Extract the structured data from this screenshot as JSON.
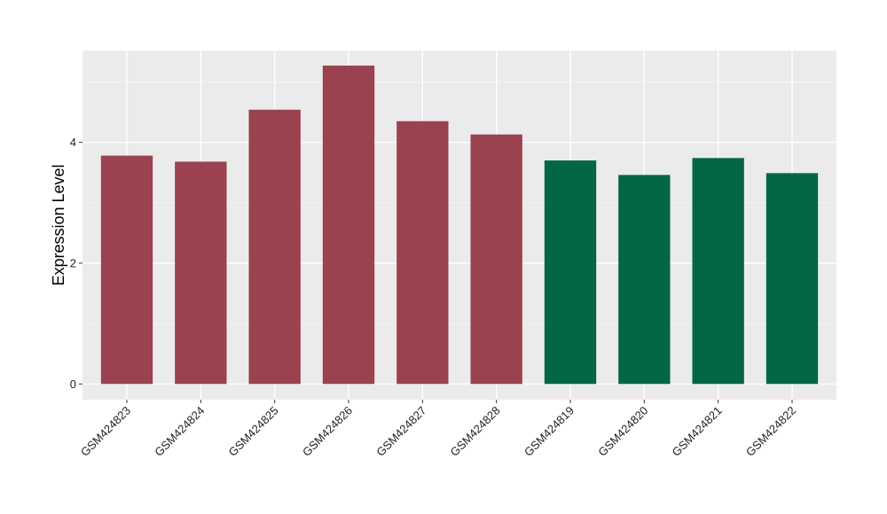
{
  "chart_data": {
    "type": "bar",
    "title": "",
    "xlabel": "",
    "ylabel": "Expression Level",
    "categories": [
      "GSM424823",
      "GSM424824",
      "GSM424825",
      "GSM424826",
      "GSM424827",
      "GSM424828",
      "GSM424819",
      "GSM424820",
      "GSM424821",
      "GSM424822"
    ],
    "values": [
      3.78,
      3.68,
      4.54,
      5.27,
      4.35,
      4.13,
      3.7,
      3.46,
      3.74,
      3.49
    ],
    "bar_colors": [
      "#9A4250",
      "#9A4250",
      "#9A4250",
      "#9A4250",
      "#9A4250",
      "#9A4250",
      "#036645",
      "#036645",
      "#036645",
      "#036645"
    ],
    "yticks": [
      0,
      2,
      4
    ],
    "ylim": [
      -0.26,
      5.52
    ],
    "grid": true,
    "legend": "none"
  },
  "colors": {
    "panel_background": "#EBEBEB",
    "grid_major": "#FFFFFF",
    "grid_minor": "#F5F5F5",
    "group_a": "#9A4250",
    "group_b": "#036645"
  }
}
